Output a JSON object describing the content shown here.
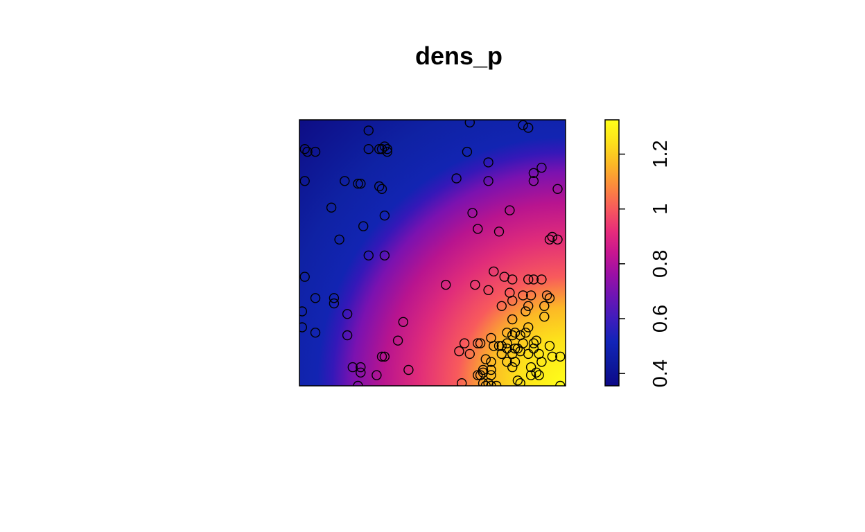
{
  "chart_data": {
    "type": "heatmap",
    "title": "dens_p",
    "xlabel": "",
    "ylabel": "",
    "window": {
      "x": [
        0,
        1
      ],
      "y": [
        0,
        1
      ]
    },
    "axes_shown": false,
    "colorbar": {
      "range": [
        0.355,
        1.325
      ],
      "ticks": [
        0.4,
        0.6,
        0.8,
        1,
        1.2
      ],
      "tick_labels": [
        "0.4",
        "0.6",
        "0.8",
        "1",
        "1.2"
      ],
      "orientation": "vertical",
      "label_rotation": "vertical",
      "colors": [
        "#0d0887",
        "#0d1a9e",
        "#1224b8",
        "#3d1dbc",
        "#6b15b5",
        "#9a10a6",
        "#c81690",
        "#e82d7a",
        "#f85a5c",
        "#fc8a3d",
        "#fcb826",
        "#fde11b",
        "#ffff1a"
      ]
    },
    "density_field": {
      "description_of_shape": "intensity rises toward bottom-right corner",
      "min": 0.355,
      "max": 1.325
    },
    "points": [
      [
        0.64,
        0.99
      ],
      [
        0.26,
        0.96
      ],
      [
        0.84,
        0.98
      ],
      [
        0.86,
        0.97
      ],
      [
        0.02,
        0.89
      ],
      [
        0.03,
        0.88
      ],
      [
        0.06,
        0.88
      ],
      [
        0.26,
        0.89
      ],
      [
        0.3,
        0.89
      ],
      [
        0.31,
        0.89
      ],
      [
        0.33,
        0.89
      ],
      [
        0.33,
        0.88
      ],
      [
        0.32,
        0.9
      ],
      [
        0.63,
        0.88
      ],
      [
        0.71,
        0.84
      ],
      [
        0.91,
        0.82
      ],
      [
        0.88,
        0.8
      ],
      [
        0.02,
        0.77
      ],
      [
        0.17,
        0.77
      ],
      [
        0.22,
        0.76
      ],
      [
        0.23,
        0.76
      ],
      [
        0.3,
        0.75
      ],
      [
        0.31,
        0.74
      ],
      [
        0.59,
        0.78
      ],
      [
        0.71,
        0.77
      ],
      [
        0.88,
        0.77
      ],
      [
        0.97,
        0.74
      ],
      [
        0.12,
        0.67
      ],
      [
        0.32,
        0.64
      ],
      [
        0.65,
        0.65
      ],
      [
        0.79,
        0.66
      ],
      [
        0.24,
        0.6
      ],
      [
        0.67,
        0.59
      ],
      [
        0.75,
        0.58
      ],
      [
        0.15,
        0.55
      ],
      [
        0.94,
        0.55
      ],
      [
        0.95,
        0.56
      ],
      [
        0.97,
        0.55
      ],
      [
        0.26,
        0.49
      ],
      [
        0.32,
        0.49
      ],
      [
        0.02,
        0.41
      ],
      [
        0.55,
        0.38
      ],
      [
        0.66,
        0.38
      ],
      [
        0.73,
        0.43
      ],
      [
        0.77,
        0.41
      ],
      [
        0.8,
        0.4
      ],
      [
        0.86,
        0.4
      ],
      [
        0.88,
        0.4
      ],
      [
        0.91,
        0.4
      ],
      [
        0.06,
        0.33
      ],
      [
        0.13,
        0.33
      ],
      [
        0.13,
        0.31
      ],
      [
        0.18,
        0.27
      ],
      [
        0.01,
        0.28
      ],
      [
        0.71,
        0.36
      ],
      [
        0.79,
        0.35
      ],
      [
        0.84,
        0.34
      ],
      [
        0.87,
        0.34
      ],
      [
        0.93,
        0.34
      ],
      [
        0.94,
        0.33
      ],
      [
        0.8,
        0.32
      ],
      [
        0.92,
        0.3
      ],
      [
        0.85,
        0.28
      ],
      [
        0.01,
        0.22
      ],
      [
        0.06,
        0.2
      ],
      [
        0.18,
        0.19
      ],
      [
        0.39,
        0.24
      ],
      [
        0.8,
        0.25
      ],
      [
        0.86,
        0.22
      ],
      [
        0.78,
        0.2
      ],
      [
        0.8,
        0.19
      ],
      [
        0.81,
        0.2
      ],
      [
        0.83,
        0.19
      ],
      [
        0.85,
        0.2
      ],
      [
        0.84,
        0.16
      ],
      [
        0.88,
        0.16
      ],
      [
        0.89,
        0.17
      ],
      [
        0.72,
        0.18
      ],
      [
        0.67,
        0.16
      ],
      [
        0.62,
        0.16
      ],
      [
        0.68,
        0.16
      ],
      [
        0.73,
        0.15
      ],
      [
        0.75,
        0.15
      ],
      [
        0.76,
        0.15
      ],
      [
        0.78,
        0.16
      ],
      [
        0.78,
        0.14
      ],
      [
        0.81,
        0.14
      ],
      [
        0.82,
        0.14
      ],
      [
        0.88,
        0.14
      ],
      [
        0.94,
        0.15
      ],
      [
        0.37,
        0.17
      ],
      [
        0.6,
        0.13
      ],
      [
        0.64,
        0.12
      ],
      [
        0.76,
        0.12
      ],
      [
        0.8,
        0.12
      ],
      [
        0.83,
        0.13
      ],
      [
        0.86,
        0.12
      ],
      [
        0.9,
        0.12
      ],
      [
        0.95,
        0.11
      ],
      [
        0.98,
        0.11
      ],
      [
        0.31,
        0.11
      ],
      [
        0.32,
        0.11
      ],
      [
        0.7,
        0.1
      ],
      [
        0.72,
        0.09
      ],
      [
        0.81,
        0.09
      ],
      [
        0.91,
        0.09
      ],
      [
        0.8,
        0.07
      ],
      [
        0.87,
        0.07
      ],
      [
        0.2,
        0.07
      ],
      [
        0.23,
        0.07
      ],
      [
        0.41,
        0.06
      ],
      [
        0.23,
        0.05
      ],
      [
        0.69,
        0.06
      ],
      [
        0.72,
        0.06
      ],
      [
        0.68,
        0.04
      ],
      [
        0.89,
        0.05
      ],
      [
        0.87,
        0.04
      ],
      [
        0.9,
        0.04
      ],
      [
        0.29,
        0.04
      ],
      [
        0.67,
        0.04
      ],
      [
        0.72,
        0.04
      ],
      [
        0.82,
        0.02
      ],
      [
        0.83,
        0.01
      ],
      [
        0.61,
        0.01
      ],
      [
        0.71,
        0.01
      ],
      [
        0.7,
        0.0
      ],
      [
        0.72,
        0.0
      ],
      [
        0.74,
        0.0
      ],
      [
        0.22,
        0.0
      ],
      [
        0.98,
        0.0
      ],
      [
        0.69,
        0.01
      ],
      [
        0.69,
        0.05
      ],
      [
        0.78,
        0.09
      ],
      [
        0.92,
        0.26
      ],
      [
        0.76,
        0.3
      ],
      [
        0.86,
        0.3
      ]
    ]
  }
}
